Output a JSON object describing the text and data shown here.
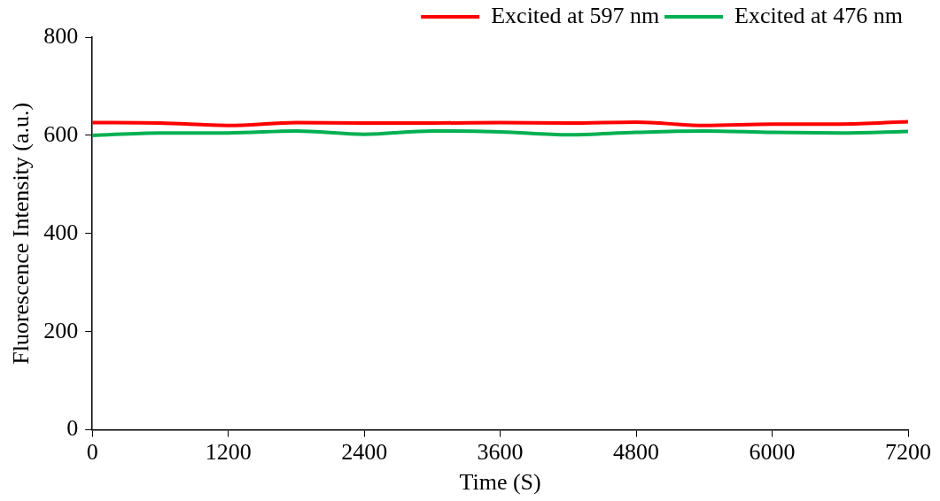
{
  "chart_data": {
    "type": "line",
    "xlabel": "Time (S)",
    "ylabel": "Fluorescence Intensity (a.u.)",
    "x": [
      0,
      600,
      1200,
      1800,
      2400,
      3000,
      3600,
      4200,
      4800,
      5400,
      6000,
      6600,
      7200
    ],
    "series": [
      {
        "name": "Excited at 597 nm",
        "color": "#ff0000",
        "values": [
          626,
          625,
          620,
          626,
          625,
          625,
          626,
          625,
          627,
          620,
          623,
          623,
          628
        ]
      },
      {
        "name": "Excited at 476 nm",
        "color": "#00b050",
        "values": [
          600,
          605,
          605,
          609,
          602,
          609,
          607,
          601,
          606,
          609,
          606,
          605,
          608
        ]
      }
    ],
    "xlim": [
      0,
      7200
    ],
    "xticks": [
      0,
      1200,
      2400,
      3600,
      4800,
      6000,
      7200
    ],
    "ylim": [
      0,
      800
    ],
    "yticks": [
      0,
      200,
      400,
      600,
      800
    ],
    "grid": false,
    "legend": "top right",
    "marker": "none",
    "line_style": "solid"
  }
}
